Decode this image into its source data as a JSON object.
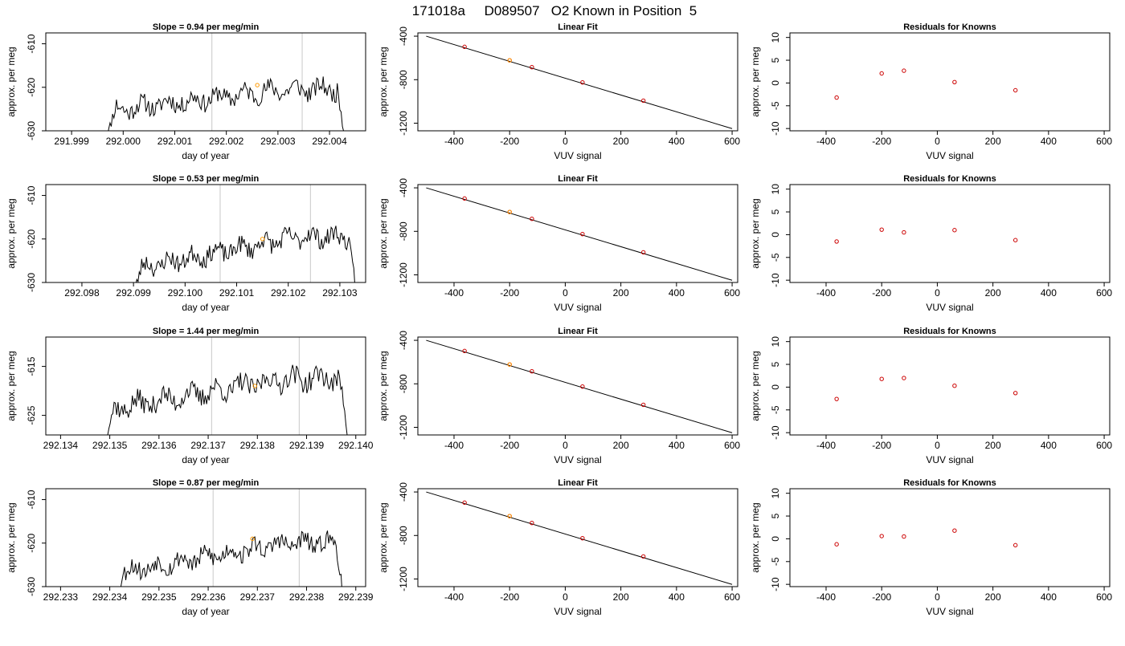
{
  "title": "171018a     D089507   O2 Known in Position  5",
  "colors": {
    "series": "#000000",
    "point": "#cc0000",
    "highlight": "#ff9900",
    "vline": "#c8c8c8",
    "axis": "#000000"
  },
  "chart_data": [
    {
      "type": "line",
      "row": 0,
      "col": 0,
      "title": "Slope =  0.94  per meg/min",
      "xlabel": "day of year",
      "ylabel": "approx. per meg",
      "xlim": [
        291.9985,
        292.0047
      ],
      "ylim": [
        -630,
        -607.5
      ],
      "xticks": [
        "291.999",
        "292.000",
        "292.001",
        "292.002",
        "292.003",
        "292.004"
      ],
      "yticks": [
        -610,
        -620,
        -630
      ],
      "x_start": 291.99962,
      "x_end": 292.00435,
      "series_base": -625.5,
      "series_amp": 5,
      "seed": 11,
      "vlines": [
        292.00172,
        292.00347
      ],
      "highlight": {
        "x": 292.0026,
        "y": -619.5
      }
    },
    {
      "type": "scatter",
      "row": 0,
      "col": 1,
      "title": "Linear Fit",
      "xlabel": "VUV signal",
      "ylabel": "approx. per meg",
      "xlim": [
        -530,
        620
      ],
      "ylim": [
        -1270,
        -370
      ],
      "xticks": [
        -400,
        -200,
        0,
        200,
        400,
        600
      ],
      "yticks": [
        -400,
        -800,
        -1200
      ],
      "line": {
        "x": [
          -500,
          600
        ],
        "y": [
          -400,
          -1250
        ]
      },
      "points": [
        {
          "x": -362,
          "y": -498
        },
        {
          "x": -200,
          "y": -622
        },
        {
          "x": -120,
          "y": -685
        },
        {
          "x": 62,
          "y": -825
        },
        {
          "x": 281,
          "y": -993
        }
      ],
      "highlight": {
        "x": -200,
        "y": -622
      }
    },
    {
      "type": "scatter",
      "row": 0,
      "col": 2,
      "title": "Residuals for Knowns",
      "xlabel": "VUV signal",
      "ylabel": "approx. per meg",
      "xlim": [
        -530,
        620
      ],
      "ylim": [
        -10.5,
        11
      ],
      "xticks": [
        -400,
        -200,
        0,
        200,
        400,
        600
      ],
      "yticks": [
        10,
        5,
        0,
        -5,
        -10
      ],
      "points": [
        {
          "x": -362,
          "y": -3.2
        },
        {
          "x": -200,
          "y": 2.1
        },
        {
          "x": -120,
          "y": 2.7
        },
        {
          "x": 62,
          "y": 0.2
        },
        {
          "x": 281,
          "y": -1.6
        }
      ]
    },
    {
      "type": "line",
      "row": 1,
      "col": 0,
      "title": "Slope =  0.53  per meg/min",
      "xlabel": "day of year",
      "ylabel": "approx. per meg",
      "xlim": [
        292.0973,
        292.1035
      ],
      "ylim": [
        -630,
        -607.5
      ],
      "xticks": [
        "292.098",
        "292.099",
        "292.100",
        "292.101",
        "292.102",
        "292.103"
      ],
      "yticks": [
        -610,
        -620,
        -630
      ],
      "x_start": 292.09895,
      "x_end": 292.10334,
      "series_base": -627,
      "series_amp": 7.5,
      "seed": 23,
      "vlines": [
        292.10068,
        292.10243
      ],
      "highlight": {
        "x": 292.1015,
        "y": -620
      }
    },
    {
      "type": "scatter",
      "row": 1,
      "col": 1,
      "title": "Linear Fit",
      "xlabel": "VUV signal",
      "ylabel": "approx. per meg",
      "xlim": [
        -530,
        620
      ],
      "ylim": [
        -1270,
        -370
      ],
      "xticks": [
        -400,
        -200,
        0,
        200,
        400,
        600
      ],
      "yticks": [
        -400,
        -800,
        -1200
      ],
      "line": {
        "x": [
          -500,
          600
        ],
        "y": [
          -400,
          -1250
        ]
      },
      "points": [
        {
          "x": -362,
          "y": -498
        },
        {
          "x": -200,
          "y": -622
        },
        {
          "x": -120,
          "y": -685
        },
        {
          "x": 62,
          "y": -825
        },
        {
          "x": 281,
          "y": -993
        }
      ],
      "highlight": {
        "x": -200,
        "y": -622
      }
    },
    {
      "type": "scatter",
      "row": 1,
      "col": 2,
      "title": "Residuals for Knowns",
      "xlabel": "VUV signal",
      "ylabel": "approx. per meg",
      "xlim": [
        -530,
        620
      ],
      "ylim": [
        -10.5,
        11
      ],
      "xticks": [
        -400,
        -200,
        0,
        200,
        400,
        600
      ],
      "yticks": [
        10,
        5,
        0,
        -5,
        -10
      ],
      "points": [
        {
          "x": -362,
          "y": -1.5
        },
        {
          "x": -200,
          "y": 1.1
        },
        {
          "x": -120,
          "y": 0.5
        },
        {
          "x": 62,
          "y": 1.0
        },
        {
          "x": 281,
          "y": -1.2
        }
      ]
    },
    {
      "type": "line",
      "row": 2,
      "col": 0,
      "title": "Slope =  1.44  per meg/min",
      "xlabel": "day of year",
      "ylabel": "approx. per meg",
      "xlim": [
        292.1337,
        292.1402
      ],
      "ylim": [
        -629,
        -609
      ],
      "xticks": [
        "292.134",
        "292.135",
        "292.136",
        "292.137",
        "292.138",
        "292.139",
        "292.140"
      ],
      "yticks": [
        -615,
        -625
      ],
      "x_start": 292.13485,
      "x_end": 292.13988,
      "series_base": -624,
      "series_amp": 6.5,
      "seed": 37,
      "vlines": [
        292.13707,
        292.13885
      ],
      "highlight": {
        "x": 292.13795,
        "y": -619
      }
    },
    {
      "type": "scatter",
      "row": 2,
      "col": 1,
      "title": "Linear Fit",
      "xlabel": "VUV signal",
      "ylabel": "approx. per meg",
      "xlim": [
        -530,
        620
      ],
      "ylim": [
        -1270,
        -370
      ],
      "xticks": [
        -400,
        -200,
        0,
        200,
        400,
        600
      ],
      "yticks": [
        -400,
        -800,
        -1200
      ],
      "line": {
        "x": [
          -500,
          600
        ],
        "y": [
          -400,
          -1250
        ]
      },
      "points": [
        {
          "x": -362,
          "y": -498
        },
        {
          "x": -200,
          "y": -622
        },
        {
          "x": -120,
          "y": -685
        },
        {
          "x": 62,
          "y": -825
        },
        {
          "x": 281,
          "y": -993
        }
      ],
      "highlight": {
        "x": -200,
        "y": -622
      }
    },
    {
      "type": "scatter",
      "row": 2,
      "col": 2,
      "title": "Residuals for Knowns",
      "xlabel": "VUV signal",
      "ylabel": "approx. per meg",
      "xlim": [
        -530,
        620
      ],
      "ylim": [
        -10.5,
        11
      ],
      "xticks": [
        -400,
        -200,
        0,
        200,
        400,
        600
      ],
      "yticks": [
        10,
        5,
        0,
        -5,
        -10
      ],
      "points": [
        {
          "x": -362,
          "y": -2.6
        },
        {
          "x": -200,
          "y": 1.8
        },
        {
          "x": -120,
          "y": 2.0
        },
        {
          "x": 62,
          "y": 0.3
        },
        {
          "x": 281,
          "y": -1.3
        }
      ]
    },
    {
      "type": "line",
      "row": 3,
      "col": 0,
      "title": "Slope =  0.87  per meg/min",
      "xlabel": "day of year",
      "ylabel": "approx. per meg",
      "xlim": [
        292.2327,
        292.2392
      ],
      "ylim": [
        -630,
        -607.5
      ],
      "xticks": [
        "292.233",
        "292.234",
        "292.235",
        "292.236",
        "292.237",
        "292.238",
        "292.239"
      ],
      "yticks": [
        -610,
        -620,
        -630
      ],
      "x_start": 292.23405,
      "x_end": 292.2388,
      "series_base": -627,
      "series_amp": 7,
      "seed": 53,
      "vlines": [
        292.2361,
        292.23785
      ],
      "highlight": {
        "x": 292.2369,
        "y": -619
      }
    },
    {
      "type": "scatter",
      "row": 3,
      "col": 1,
      "title": "Linear Fit",
      "xlabel": "VUV signal",
      "ylabel": "approx. per meg",
      "xlim": [
        -530,
        620
      ],
      "ylim": [
        -1270,
        -370
      ],
      "xticks": [
        -400,
        -200,
        0,
        200,
        400,
        600
      ],
      "yticks": [
        -400,
        -800,
        -1200
      ],
      "line": {
        "x": [
          -500,
          600
        ],
        "y": [
          -400,
          -1250
        ]
      },
      "points": [
        {
          "x": -362,
          "y": -498
        },
        {
          "x": -200,
          "y": -622
        },
        {
          "x": -120,
          "y": -685
        },
        {
          "x": 62,
          "y": -825
        },
        {
          "x": 281,
          "y": -993
        }
      ],
      "highlight": {
        "x": -200,
        "y": -622
      }
    },
    {
      "type": "scatter",
      "row": 3,
      "col": 2,
      "title": "Residuals for Knowns",
      "xlabel": "VUV signal",
      "ylabel": "approx. per meg",
      "xlim": [
        -530,
        620
      ],
      "ylim": [
        -10.5,
        11
      ],
      "xticks": [
        -400,
        -200,
        0,
        200,
        400,
        600
      ],
      "yticks": [
        10,
        5,
        0,
        -5,
        -10
      ],
      "points": [
        {
          "x": -362,
          "y": -1.2
        },
        {
          "x": -200,
          "y": 0.6
        },
        {
          "x": -120,
          "y": 0.5
        },
        {
          "x": 62,
          "y": 1.8
        },
        {
          "x": 281,
          "y": -1.4
        }
      ]
    }
  ]
}
